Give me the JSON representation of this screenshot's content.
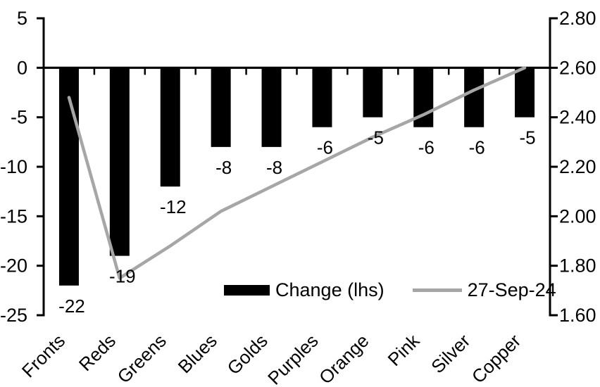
{
  "chart_data": {
    "type": "bar",
    "title": "",
    "categories": [
      "Fronts",
      "Reds",
      "Greens",
      "Blues",
      "Golds",
      "Purples",
      "Orange",
      "Pink",
      "Silver",
      "Copper"
    ],
    "series": [
      {
        "name": "Change (lhs)",
        "kind": "bar",
        "axis": "left",
        "color": "#000000",
        "values": [
          -22,
          -19,
          -12,
          -8,
          -8,
          -6,
          -5,
          -6,
          -6,
          -5
        ],
        "labels": [
          "-22",
          "-19",
          "-12",
          "-8",
          "-8",
          "-6",
          "-5",
          "-6",
          "-6",
          "-5"
        ]
      },
      {
        "name": "27-Sep-24",
        "kind": "line",
        "axis": "right",
        "color": "#a6a6a6",
        "values": [
          2.48,
          1.75,
          1.88,
          2.02,
          2.12,
          2.22,
          2.32,
          2.41,
          2.51,
          2.6
        ]
      }
    ],
    "left_axis": {
      "max": 5,
      "min": -25,
      "step": 5,
      "tick_labels": [
        "5",
        "0",
        "-5",
        "-10",
        "-15",
        "-20",
        "-25"
      ]
    },
    "right_axis": {
      "max": 2.8,
      "min": 1.6,
      "step": 0.2,
      "tick_labels": [
        "2.80",
        "2.60",
        "2.40",
        "2.20",
        "2.00",
        "1.80",
        "1.60"
      ]
    },
    "legend": {
      "position": "bottom-inside",
      "entries": [
        "Change (lhs)",
        "27-Sep-24"
      ]
    },
    "grid": false,
    "baseline_value_left": 0
  },
  "colors": {
    "background": "#ffffff",
    "axis": "#000000",
    "text": "#000000",
    "bar": "#000000",
    "line": "#a6a6a6"
  }
}
